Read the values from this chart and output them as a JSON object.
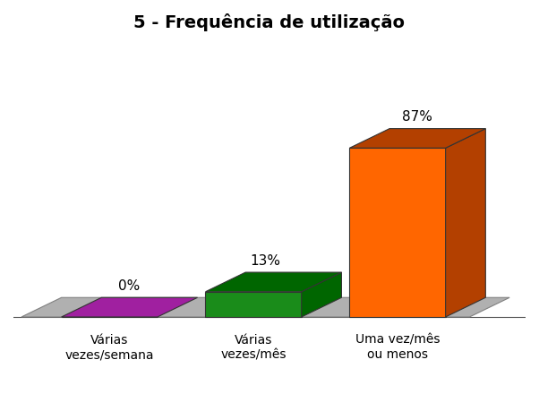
{
  "title": "5 - Frequência de utilização",
  "categories": [
    "Várias\nvezes/semana",
    "Várias\nvezes/mês",
    "Uma vez/mês\nou menos"
  ],
  "values": [
    0,
    13,
    87
  ],
  "labels": [
    "0%",
    "13%",
    "87%"
  ],
  "front_colors": [
    "#a020a0",
    "#1a8c1a",
    "#ff6600"
  ],
  "side_colors": [
    "#7a007a",
    "#006600",
    "#b34000"
  ],
  "top_colors": [
    "#909090",
    "#909090",
    "#909090"
  ],
  "floor_color": "#b0b0b0",
  "background_color": "#ffffff",
  "title_fontsize": 14,
  "label_fontsize": 11,
  "tick_fontsize": 10,
  "ylim_max": 100
}
